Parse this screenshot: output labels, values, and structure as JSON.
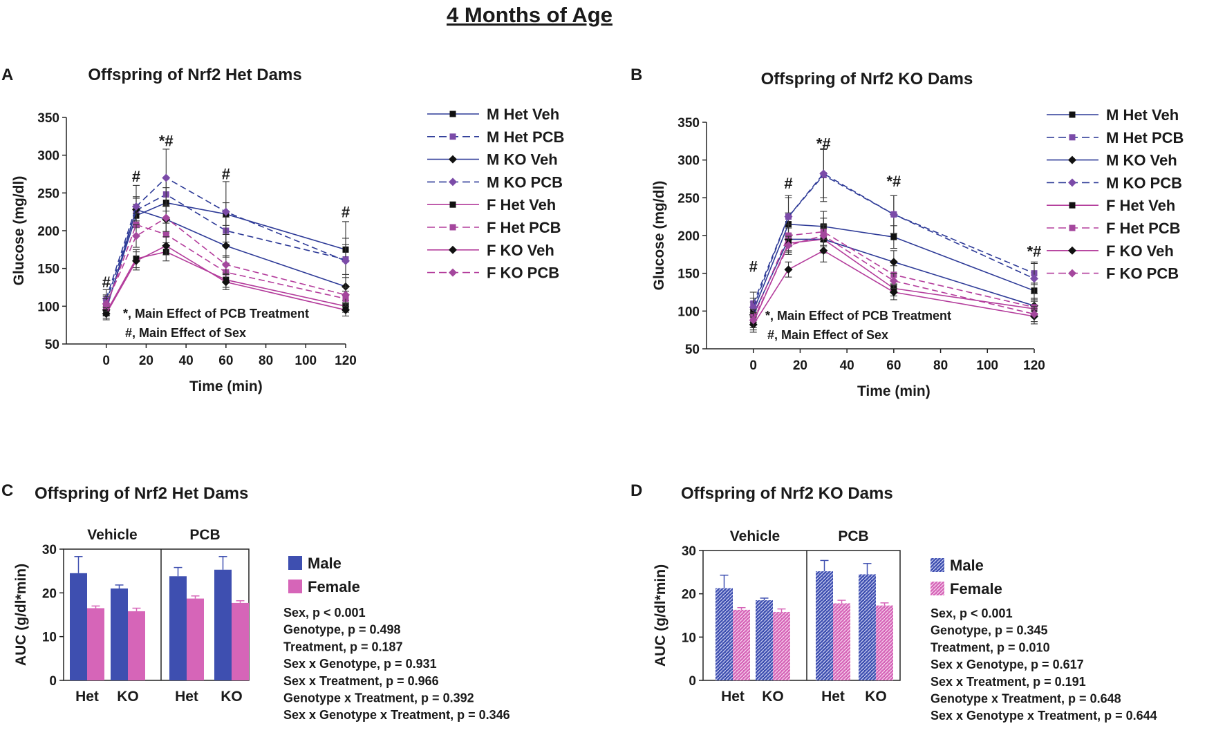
{
  "figure_title": "4 Months of Age",
  "colors": {
    "male": "#2d3a97",
    "female": "#b43d9c",
    "male_bar": "#3e4fb0",
    "female_bar": "#d665b8",
    "male_marker_pcb": "#7b4ba8",
    "female_marker_pcb": "#a4479d",
    "axis": "#222222"
  },
  "chart_data": [
    {
      "type": "line",
      "panel": "A",
      "title": "Offspring of Nrf2 Het Dams",
      "xlabel": "Time (min)",
      "ylabel": "Glucose (mg/dl)",
      "xlim": [
        -20,
        120
      ],
      "ylim": [
        50,
        350
      ],
      "xticks": [
        0,
        20,
        40,
        60,
        80,
        100,
        120
      ],
      "yticks": [
        50,
        100,
        150,
        200,
        250,
        300,
        350
      ],
      "x": [
        0,
        15,
        30,
        60,
        120
      ],
      "series": [
        {
          "name": "M Het Veh",
          "sex": "male",
          "treatment": "veh",
          "marker": "square",
          "values": [
            98,
            220,
            237,
            222,
            175
          ],
          "errors": [
            10,
            15,
            20,
            15,
            15
          ]
        },
        {
          "name": "M Het PCB",
          "sex": "male",
          "treatment": "pcb",
          "marker": "square",
          "values": [
            105,
            227,
            248,
            200,
            162
          ],
          "errors": [
            10,
            18,
            22,
            18,
            20
          ]
        },
        {
          "name": "M KO Veh",
          "sex": "male",
          "treatment": "veh",
          "marker": "diamond",
          "values": [
            95,
            228,
            215,
            180,
            126
          ],
          "errors": [
            8,
            15,
            18,
            15,
            12
          ]
        },
        {
          "name": "M KO PCB",
          "sex": "male",
          "treatment": "pcb",
          "marker": "diamond",
          "values": [
            110,
            232,
            270,
            225,
            160
          ],
          "errors": [
            12,
            28,
            38,
            40,
            52
          ]
        },
        {
          "name": "F Het Veh",
          "sex": "female",
          "treatment": "veh",
          "marker": "square",
          "values": [
            92,
            163,
            172,
            135,
            100
          ],
          "errors": [
            8,
            12,
            12,
            10,
            8
          ]
        },
        {
          "name": "F Het PCB",
          "sex": "female",
          "treatment": "pcb",
          "marker": "square",
          "values": [
            100,
            208,
            195,
            145,
            110
          ],
          "errors": [
            10,
            15,
            15,
            12,
            10
          ]
        },
        {
          "name": "F KO Veh",
          "sex": "female",
          "treatment": "veh",
          "marker": "diamond",
          "values": [
            90,
            160,
            180,
            132,
            95
          ],
          "errors": [
            8,
            12,
            12,
            10,
            8
          ]
        },
        {
          "name": "F KO PCB",
          "sex": "female",
          "treatment": "pcb",
          "marker": "diamond",
          "values": [
            103,
            193,
            217,
            155,
            115
          ],
          "errors": [
            10,
            15,
            18,
            12,
            10
          ]
        }
      ],
      "markers": [
        {
          "label": "#",
          "x": 0,
          "y": 125
        },
        {
          "label": "#",
          "x": 15,
          "y": 265
        },
        {
          "label": "*#",
          "x": 30,
          "y": 312
        },
        {
          "label": "#",
          "x": 60,
          "y": 268
        },
        {
          "label": "#",
          "x": 120,
          "y": 218
        }
      ],
      "annotations": [
        "*, Main Effect of PCB Treatment",
        "#, Main Effect of Sex"
      ]
    },
    {
      "type": "line",
      "panel": "B",
      "title": "Offspring of Nrf2 KO Dams",
      "xlabel": "Time (min)",
      "ylabel": "Glucose (mg/dl)",
      "xlim": [
        -20,
        120
      ],
      "ylim": [
        50,
        350
      ],
      "xticks": [
        0,
        20,
        40,
        60,
        80,
        100,
        120
      ],
      "yticks": [
        50,
        100,
        150,
        200,
        250,
        300,
        350
      ],
      "x": [
        0,
        15,
        30,
        60,
        120
      ],
      "series": [
        {
          "name": "M Het Veh",
          "sex": "male",
          "treatment": "veh",
          "marker": "square",
          "values": [
            100,
            215,
            212,
            198,
            127
          ],
          "errors": [
            12,
            15,
            20,
            15,
            10
          ]
        },
        {
          "name": "M Het PCB",
          "sex": "male",
          "treatment": "pcb",
          "marker": "square",
          "values": [
            110,
            225,
            280,
            228,
            150
          ],
          "errors": [
            15,
            28,
            35,
            25,
            15
          ]
        },
        {
          "name": "M KO Veh",
          "sex": "male",
          "treatment": "veh",
          "marker": "diamond",
          "values": [
            95,
            195,
            195,
            165,
            107
          ],
          "errors": [
            10,
            15,
            18,
            15,
            10
          ]
        },
        {
          "name": "M KO PCB",
          "sex": "male",
          "treatment": "pcb",
          "marker": "diamond",
          "values": [
            105,
            225,
            282,
            228,
            143
          ],
          "errors": [
            12,
            25,
            32,
            25,
            20
          ]
        },
        {
          "name": "F Het Veh",
          "sex": "female",
          "treatment": "veh",
          "marker": "square",
          "values": [
            85,
            190,
            195,
            130,
            103
          ],
          "errors": [
            10,
            12,
            15,
            10,
            10
          ]
        },
        {
          "name": "F Het PCB",
          "sex": "female",
          "treatment": "pcb",
          "marker": "square",
          "values": [
            92,
            200,
            205,
            148,
            105
          ],
          "errors": [
            10,
            15,
            18,
            12,
            10
          ]
        },
        {
          "name": "F KO Veh",
          "sex": "female",
          "treatment": "veh",
          "marker": "diamond",
          "values": [
            82,
            155,
            180,
            125,
            93
          ],
          "errors": [
            10,
            10,
            15,
            10,
            10
          ]
        },
        {
          "name": "F KO PCB",
          "sex": "female",
          "treatment": "pcb",
          "marker": "diamond",
          "values": [
            88,
            187,
            200,
            140,
            96
          ],
          "errors": [
            10,
            12,
            15,
            10,
            10
          ]
        }
      ],
      "markers": [
        {
          "label": "#",
          "x": 0,
          "y": 152
        },
        {
          "label": "#",
          "x": 15,
          "y": 262
        },
        {
          "label": "*#",
          "x": 30,
          "y": 315
        },
        {
          "label": "*#",
          "x": 60,
          "y": 265
        },
        {
          "label": "*#",
          "x": 120,
          "y": 172
        }
      ],
      "annotations": [
        "*, Main Effect of PCB Treatment",
        "#, Main Effect of Sex"
      ]
    },
    {
      "type": "bar",
      "panel": "C",
      "title": "Offspring of Nrf2 Het Dams",
      "ylabel": "AUC (g/dl*min)",
      "ylim": [
        0,
        30
      ],
      "yticks": [
        0,
        10,
        20,
        30
      ],
      "groups": [
        "Vehicle",
        "PCB"
      ],
      "categories": [
        "Het",
        "KO",
        "Het",
        "KO"
      ],
      "series": [
        {
          "name": "Male",
          "values": [
            24.5,
            21,
            23.8,
            25.3
          ],
          "errors": [
            3.8,
            0.8,
            2.0,
            3.0
          ]
        },
        {
          "name": "Female",
          "values": [
            16.5,
            15.8,
            18.7,
            17.7
          ],
          "errors": [
            0.5,
            0.7,
            0.6,
            0.5
          ]
        }
      ],
      "stats": [
        "Sex, p < 0.001",
        "Genotype, p = 0.498",
        "Treatment, p = 0.187",
        "Sex x Genotype, p = 0.931",
        "Sex x Treatment, p = 0.966",
        "Genotype x Treatment, p = 0.392",
        "Sex x Genotype x Treatment, p = 0.346"
      ]
    },
    {
      "type": "bar",
      "panel": "D",
      "title": "Offspring of Nrf2 KO Dams",
      "ylabel": "AUC (g/dl*min)",
      "ylim": [
        0,
        30
      ],
      "yticks": [
        0,
        10,
        20,
        30
      ],
      "groups": [
        "Vehicle",
        "PCB"
      ],
      "categories": [
        "Het",
        "KO",
        "Het",
        "KO"
      ],
      "series": [
        {
          "name": "Male",
          "values": [
            21.3,
            18.5,
            25.2,
            24.5
          ],
          "errors": [
            3.0,
            0.5,
            2.5,
            2.5
          ]
        },
        {
          "name": "Female",
          "values": [
            16.3,
            15.8,
            17.8,
            17.3
          ],
          "errors": [
            0.5,
            0.7,
            0.7,
            0.6
          ]
        }
      ],
      "stats": [
        "Sex, p < 0.001",
        "Genotype, p = 0.345",
        "Treatment, p = 0.010",
        "Sex x Genotype, p = 0.617",
        "Sex x Treatment, p = 0.191",
        "Genotype x Treatment, p = 0.648",
        "Sex x Genotype x Treatment, p = 0.644"
      ]
    }
  ]
}
